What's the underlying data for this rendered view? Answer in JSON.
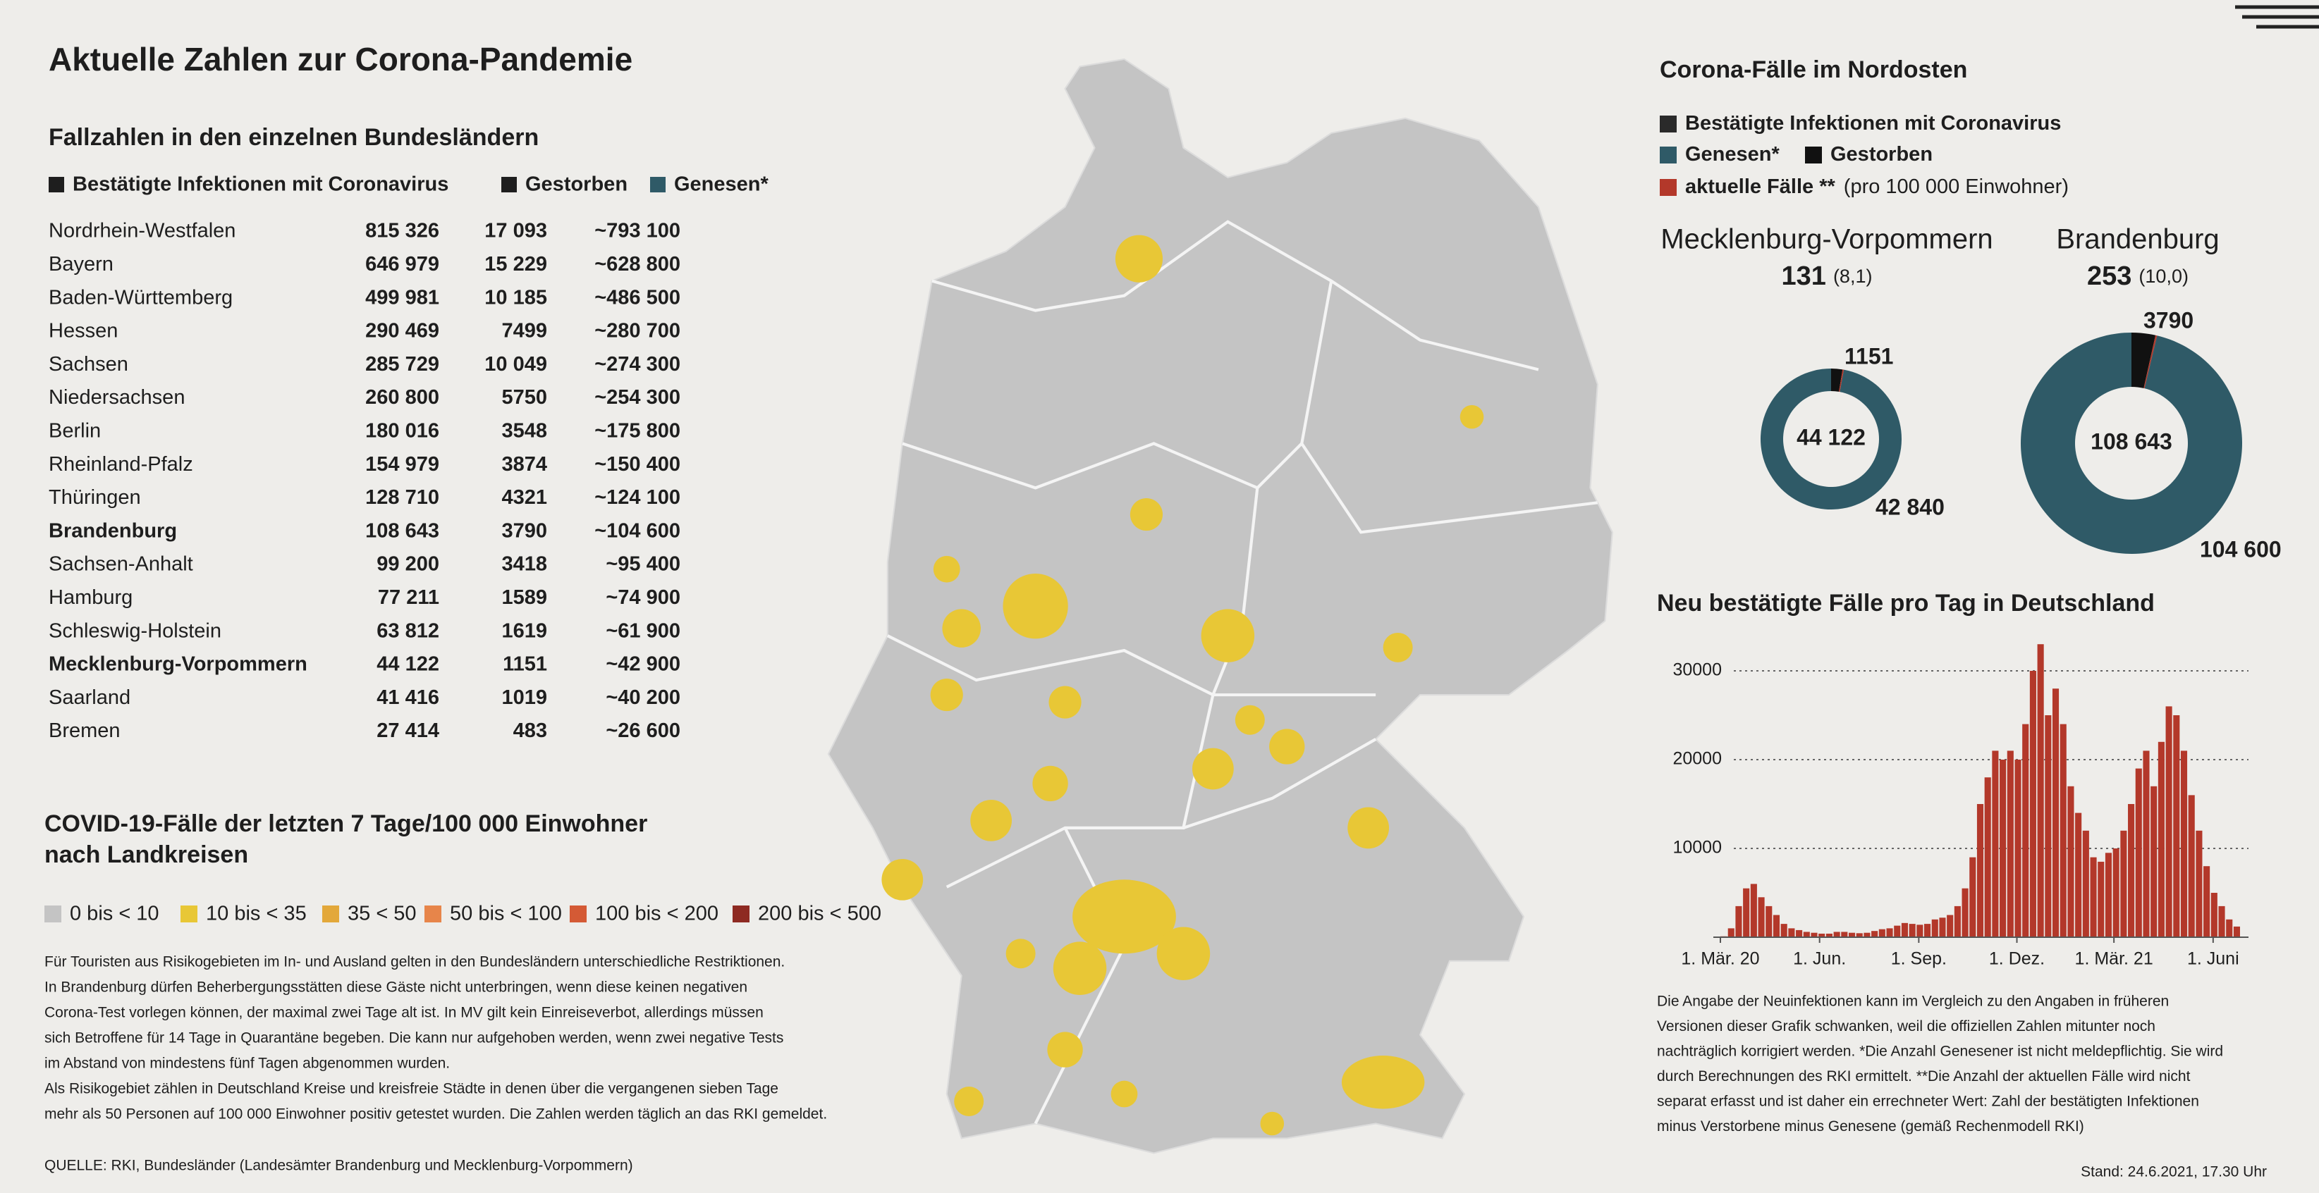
{
  "header": {
    "title": "Aktuelle Zahlen zur Corona-Pandemie"
  },
  "table": {
    "title": "Fallzahlen in den einzelnen Bundesländern",
    "legend": [
      {
        "label": "Bestätigte Infektionen mit Coronavirus",
        "color": "#1e1e1e"
      },
      {
        "label": "Gestorben",
        "color": "#1e1e1e"
      },
      {
        "label": "Genesen*",
        "color": "#2f5a67"
      }
    ],
    "rows": [
      {
        "cells": [
          "Nordrhein-Westfalen",
          "815 326",
          "17 093",
          "~793 100"
        ]
      },
      {
        "cells": [
          "Bayern",
          "646 979",
          "15 229",
          "~628 800"
        ]
      },
      {
        "cells": [
          "Baden-Württemberg",
          "499 981",
          "10 185",
          "~486 500"
        ]
      },
      {
        "cells": [
          "Hessen",
          "290 469",
          "7499",
          "~280 700"
        ]
      },
      {
        "cells": [
          "Sachsen",
          "285 729",
          "10 049",
          "~274 300"
        ]
      },
      {
        "cells": [
          "Niedersachsen",
          "260 800",
          "5750",
          "~254 300"
        ]
      },
      {
        "cells": [
          "Berlin",
          "180 016",
          "3548",
          "~175 800"
        ]
      },
      {
        "cells": [
          "Rheinland-Pfalz",
          "154 979",
          "3874",
          "~150 400"
        ]
      },
      {
        "cells": [
          "Thüringen",
          "128 710",
          "4321",
          "~124 100"
        ]
      },
      {
        "cells": [
          "Brandenburg",
          "108 643",
          "3790",
          "~104 600"
        ],
        "bold": true
      },
      {
        "cells": [
          "Sachsen-Anhalt",
          "99 200",
          "3418",
          "~95 400"
        ]
      },
      {
        "cells": [
          "Hamburg",
          "77 211",
          "1589",
          "~74 900"
        ]
      },
      {
        "cells": [
          "Schleswig-Holstein",
          "63 812",
          "1619",
          "~61 900"
        ]
      },
      {
        "cells": [
          "Mecklenburg-Vorpommern",
          "44 122",
          "1151",
          "~42 900"
        ],
        "bold": true
      },
      {
        "cells": [
          "Saarland",
          "41 416",
          "1019",
          "~40 200"
        ]
      },
      {
        "cells": [
          "Bremen",
          "27 414",
          "483",
          "~26 600"
        ]
      }
    ]
  },
  "map": {
    "title": [
      "COVID-19-Fälle der letzten 7 Tage/100 000 Einwohner",
      "nach Landkreisen"
    ],
    "legend": [
      {
        "label": "0 bis < 10",
        "color": "#c4c4c4"
      },
      {
        "label": "10 bis < 35",
        "color": "#e8c736"
      },
      {
        "label": "35 < 50",
        "color": "#e3a83a"
      },
      {
        "label": "50 bis < 100",
        "color": "#e7854a"
      },
      {
        "label": "100 bis < 200",
        "color": "#d45a35"
      },
      {
        "label": "200 bis < 500",
        "color": "#8e2a22"
      }
    ]
  },
  "notes": [
    "Für Touristen aus Risikogebieten im In- und Ausland gelten in den Bundesländern unterschiedliche Restriktionen.",
    "In Brandenburg dürfen Beherbergungsstätten diese Gäste nicht unterbringen, wenn diese keinen negativen",
    "Corona-Test vorlegen können, der maximal zwei Tage alt ist. In MV gilt kein Einreiseverbot, allerdings müssen",
    "sich Betroffene für 14 Tage in Quarantäne begeben. Die kann nur aufgehoben werden, wenn zwei negative Tests",
    "im Abstand von mindestens fünf Tagen abgenommen wurden.",
    "Als Risikogebiet zählen in Deutschland Kreise und kreisfreie Städte in denen über die vergangenen sieben Tage",
    "mehr als 50 Personen auf 100 000 Einwohner positiv getestet wurden. Die Zahlen werden täglich an das RKI gemeldet."
  ],
  "source": "QUELLE: RKI, Bundesländer (Landesämter Brandenburg und Mecklenburg-Vorpommern)",
  "nordost": {
    "title": "Corona-Fälle im Nordosten",
    "legend": [
      [
        {
          "label": "Bestätigte Infektionen mit Coronavirus",
          "color": "#2a2a2a"
        }
      ],
      [
        {
          "label": "Genesen*",
          "color": "#2f5a67"
        },
        {
          "label": "Gestorben",
          "color": "#111111"
        }
      ],
      [
        {
          "label": "aktuelle Fälle **",
          "suffix": "(pro 100 000 Einwohner)",
          "color": "#b3382a"
        }
      ]
    ],
    "regions": [
      {
        "name": "Mecklenburg-Vorpommern",
        "active": 131,
        "rate": "(8,1)",
        "total": "44 122",
        "deaths": 1151,
        "recovered": 42840,
        "recovered_label": "42 840"
      },
      {
        "name": "Brandenburg",
        "active": 253,
        "rate": "(10,0)",
        "total": "108 643",
        "deaths": 3790,
        "recovered": 104600,
        "recovered_label": "104 600"
      }
    ]
  },
  "chart_data": {
    "type": "bar",
    "title": "Neu bestätigte Fälle pro Tag in Deutschland",
    "color": "#b3382a",
    "grid": true,
    "x": [
      "2020-03-01",
      "2020-03-08",
      "2020-03-15",
      "2020-03-22",
      "2020-03-29",
      "2020-04-05",
      "2020-04-12",
      "2020-04-19",
      "2020-04-26",
      "2020-05-03",
      "2020-05-10",
      "2020-05-17",
      "2020-05-24",
      "2020-05-31",
      "2020-06-07",
      "2020-06-14",
      "2020-06-21",
      "2020-06-28",
      "2020-07-05",
      "2020-07-12",
      "2020-07-19",
      "2020-07-26",
      "2020-08-02",
      "2020-08-09",
      "2020-08-16",
      "2020-08-23",
      "2020-08-30",
      "2020-09-06",
      "2020-09-13",
      "2020-09-20",
      "2020-09-27",
      "2020-10-04",
      "2020-10-11",
      "2020-10-18",
      "2020-10-25",
      "2020-11-01",
      "2020-11-08",
      "2020-11-15",
      "2020-11-22",
      "2020-11-29",
      "2020-12-06",
      "2020-12-13",
      "2020-12-20",
      "2020-12-27",
      "2021-01-03",
      "2021-01-10",
      "2021-01-17",
      "2021-01-24",
      "2021-01-31",
      "2021-02-07",
      "2021-02-14",
      "2021-02-21",
      "2021-02-28",
      "2021-03-07",
      "2021-03-14",
      "2021-03-21",
      "2021-03-28",
      "2021-04-04",
      "2021-04-11",
      "2021-04-18",
      "2021-04-25",
      "2021-05-02",
      "2021-05-09",
      "2021-05-16",
      "2021-05-23",
      "2021-05-30",
      "2021-06-06",
      "2021-06-13",
      "2021-06-20"
    ],
    "values": [
      100,
      1000,
      3500,
      5500,
      6000,
      4500,
      3500,
      2500,
      1500,
      1000,
      800,
      600,
      500,
      400,
      400,
      600,
      600,
      500,
      450,
      500,
      700,
      900,
      1000,
      1300,
      1600,
      1500,
      1400,
      1500,
      2000,
      2200,
      2500,
      3500,
      5500,
      9000,
      15000,
      18000,
      21000,
      20000,
      21000,
      20000,
      24000,
      30000,
      33000,
      25000,
      28000,
      24000,
      17000,
      14000,
      12000,
      9000,
      8500,
      9500,
      10000,
      12000,
      15000,
      19000,
      21000,
      17000,
      22000,
      26000,
      25000,
      21000,
      16000,
      12000,
      8000,
      5000,
      3500,
      2000,
      1200
    ],
    "xlim": [
      "2020-03-01",
      "2021-06-24"
    ],
    "xticks": [
      {
        "value": "2020-03-01",
        "label": "1. Mär. 20"
      },
      {
        "value": "2020-06-01",
        "label": "1. Jun."
      },
      {
        "value": "2020-09-01",
        "label": "1. Sep."
      },
      {
        "value": "2020-12-01",
        "label": "1. Dez."
      },
      {
        "value": "2021-03-01",
        "label": "1. Mär. 21"
      },
      {
        "value": "2021-06-01",
        "label": "1. Juni"
      }
    ],
    "ylim": [
      0,
      35000
    ],
    "yticks": [
      10000,
      20000,
      30000
    ]
  },
  "footnote": [
    "Die Angabe der Neuinfektionen kann im Vergleich zu den Angaben in früheren",
    "Versionen dieser Grafik schwanken, weil die offiziellen Zahlen mitunter noch",
    "nachträglich korrigiert werden. *Die Anzahl Genesener ist nicht meldepflichtig. Sie wird",
    "durch Berechnungen des RKI ermittelt. **Die Anzahl der aktuellen Fälle wird nicht",
    "separat erfasst und ist daher ein errechneter Wert: Zahl der bestätigten Infektionen",
    "minus Verstorbene minus Genesene (gemäß Rechenmodell RKI)"
  ],
  "stand": "Stand: 24.6.2021, 17.30 Uhr"
}
